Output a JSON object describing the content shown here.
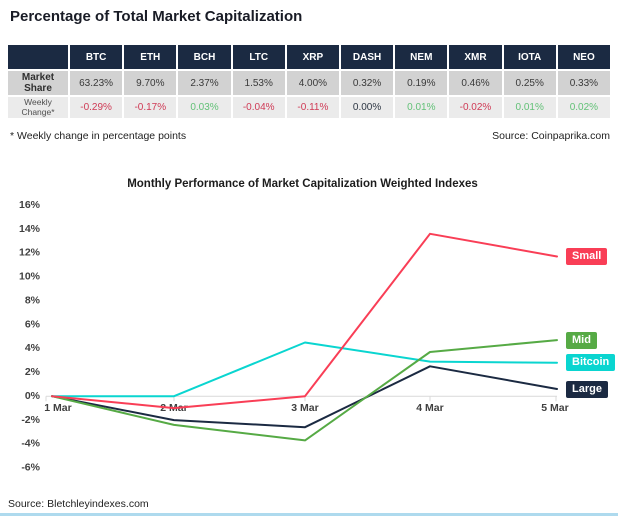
{
  "page": {
    "title": "Percentage of Total Market Capitalization",
    "footnote": "* Weekly change in percentage points",
    "table_source": "Source: Coinpaprika.com",
    "chart_source": "Source: Bletchleyindexes.com"
  },
  "table": {
    "columns": [
      "BTC",
      "ETH",
      "BCH",
      "LTC",
      "XRP",
      "DASH",
      "NEM",
      "XMR",
      "IOTA",
      "NEO"
    ],
    "rows": [
      {
        "label": "Market Share",
        "values": [
          "63.23%",
          "9.70%",
          "2.37%",
          "1.53%",
          "4.00%",
          "0.32%",
          "0.19%",
          "0.46%",
          "0.25%",
          "0.33%"
        ]
      },
      {
        "label": "Weekly Change*",
        "values": [
          "-0.29%",
          "-0.17%",
          "0.03%",
          "-0.04%",
          "-0.11%",
          "0.00%",
          "0.01%",
          "-0.02%",
          "0.01%",
          "0.02%"
        ]
      }
    ]
  },
  "chart_data": {
    "type": "line",
    "title": "Monthly Performance of Market Capitalization Weighted Indexes",
    "categories": [
      "1 Mar",
      "2 Mar",
      "3 Mar",
      "4 Mar",
      "5 Mar"
    ],
    "series": [
      {
        "name": "Small",
        "color": "#f93e56",
        "values": [
          0,
          -1.0,
          0.0,
          13.6,
          11.7
        ]
      },
      {
        "name": "Mid",
        "color": "#56aa45",
        "values": [
          0,
          -2.4,
          -3.7,
          3.7,
          4.7
        ]
      },
      {
        "name": "Bitcoin",
        "color": "#0ad5d0",
        "values": [
          0,
          0.0,
          4.5,
          2.9,
          2.8
        ]
      },
      {
        "name": "Large",
        "color": "#1b2a42",
        "values": [
          0,
          -2.0,
          -2.6,
          2.5,
          0.6
        ]
      }
    ],
    "ylim": [
      -6,
      16
    ],
    "ytick_step": 2,
    "ytick_format": "percent",
    "xlabel": "",
    "ylabel": "",
    "grid": false,
    "legend_position": "right-end-labels",
    "axis_color": "#d9d9d9",
    "tick_label_color": "#404040"
  }
}
